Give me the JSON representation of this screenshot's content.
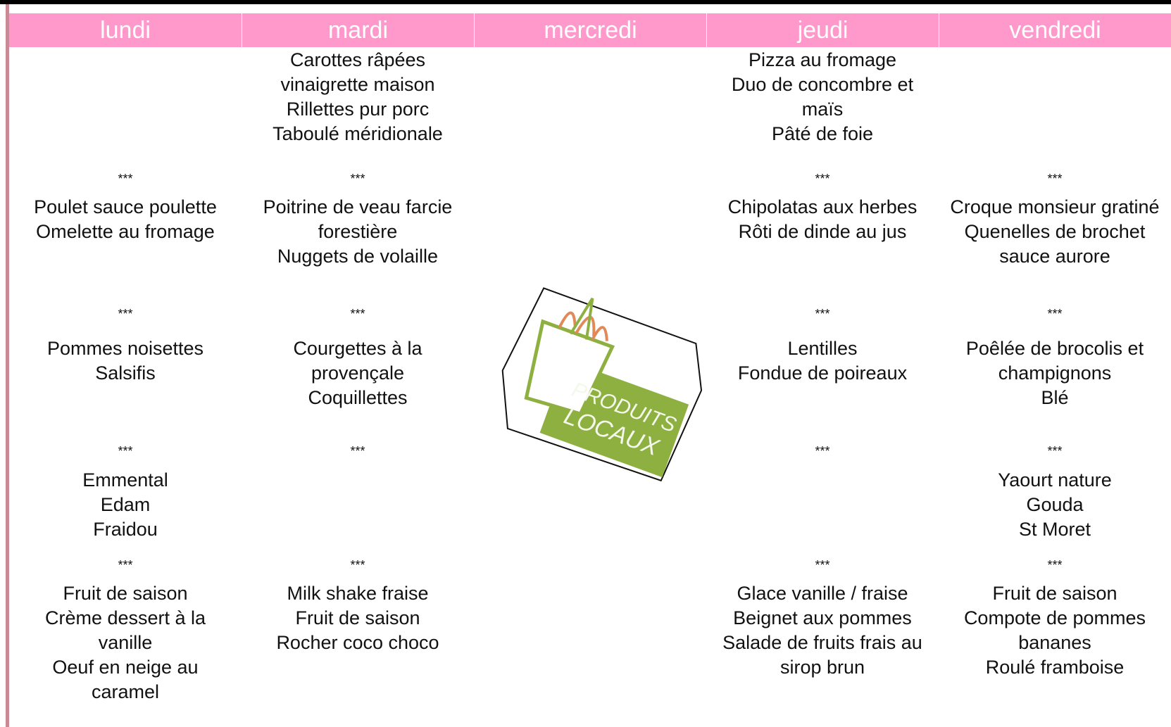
{
  "separator": "***",
  "logo": {
    "line1": "PRODUITS",
    "line2": "LOCAUX"
  },
  "columns": [
    {
      "day": "lundi",
      "sections": [
        [],
        [
          "Poulet sauce poulette",
          "Omelette au fromage"
        ],
        [
          "Pommes noisettes",
          "Salsifis"
        ],
        [
          "Emmental",
          "Edam",
          "Fraidou"
        ],
        [
          "Fruit de saison",
          "Crème dessert à la",
          "vanille",
          "Oeuf en neige au",
          "caramel"
        ]
      ]
    },
    {
      "day": "mardi",
      "sections": [
        [
          "Carottes râpées",
          "vinaigrette maison",
          "Rillettes pur porc",
          "Taboulé méridionale"
        ],
        [
          "Poitrine de veau farcie",
          "forestière",
          "Nuggets de volaille"
        ],
        [
          "Courgettes à la",
          "provençale",
          "Coquillettes"
        ],
        [],
        [
          "Milk shake fraise",
          "Fruit de saison",
          "Rocher coco choco"
        ]
      ]
    },
    {
      "day": "mercredi",
      "sections": []
    },
    {
      "day": "jeudi",
      "sections": [
        [
          "Pizza au fromage",
          "Duo de concombre et",
          "maïs",
          "Pâté de foie"
        ],
        [
          "Chipolatas aux herbes",
          "Rôti de dinde au jus"
        ],
        [
          "Lentilles",
          "Fondue de poireaux"
        ],
        [],
        [
          "Glace vanille / fraise",
          "Beignet aux pommes",
          "Salade de fruits frais au",
          "sirop brun"
        ]
      ]
    },
    {
      "day": "vendredi",
      "sections": [
        [],
        [
          "Croque monsieur gratiné",
          "Quenelles de brochet",
          "sauce aurore"
        ],
        [
          "Poêlée de brocolis et",
          "champignons",
          "Blé"
        ],
        [
          "Yaourt nature",
          "Gouda",
          "St Moret"
        ],
        [
          "Fruit de saison",
          "Compote de pommes",
          "bananes",
          "Roulé framboise"
        ]
      ]
    }
  ]
}
